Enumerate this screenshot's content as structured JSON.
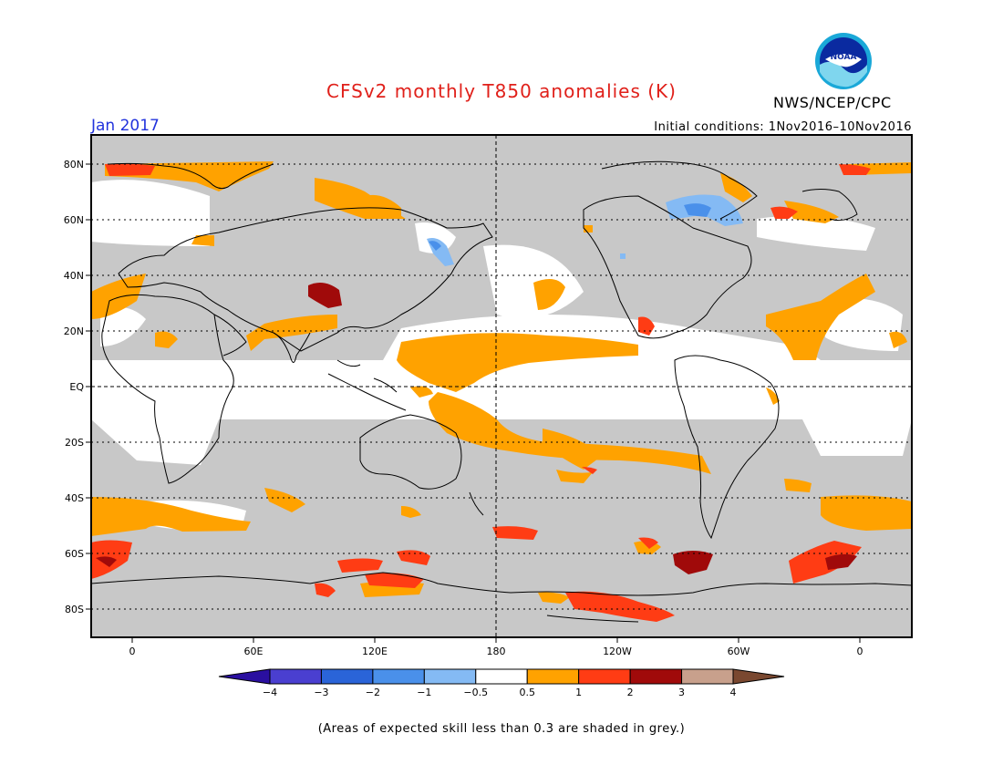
{
  "title": "CFSv2 monthly T850 anomalies (K)",
  "month": "Jan 2017",
  "initial_conditions": "Initial conditions: 1Nov2016–10Nov2016",
  "agency": "NWS/NCEP/CPC",
  "logo_text": "NOAA",
  "note": "(Areas of expected skill less than 0.3 are shaded in grey.)",
  "colors": {
    "title": "#e0201a",
    "month": "#2233dd",
    "skill_grey": "#c8c8c8",
    "ocean_fill": "#ffffff"
  },
  "lat_labels": [
    "80N",
    "60N",
    "40N",
    "20N",
    "EQ",
    "20S",
    "40S",
    "60S",
    "80S"
  ],
  "lon_labels": [
    "0",
    "60E",
    "120E",
    "180",
    "120W",
    "60W",
    "0"
  ],
  "colorbar": {
    "ticks": [
      "−4",
      "−3",
      "−2",
      "−1",
      "−0.5",
      "0.5",
      "1",
      "2",
      "3",
      "4"
    ],
    "colors": [
      "#2a0fa0",
      "#4a3fd0",
      "#2a64d8",
      "#4a90ea",
      "#84baf4",
      "#ffffff",
      "#ffa200",
      "#ff3c14",
      "#a00a0a",
      "#c8a08c",
      "#7a4830"
    ]
  },
  "anomaly_colors": {
    "neg_small": "#84baf4",
    "neg_med": "#4a90ea",
    "pos_small": "#ffa200",
    "pos_med": "#ff3c14",
    "pos_large": "#a00a0a"
  }
}
